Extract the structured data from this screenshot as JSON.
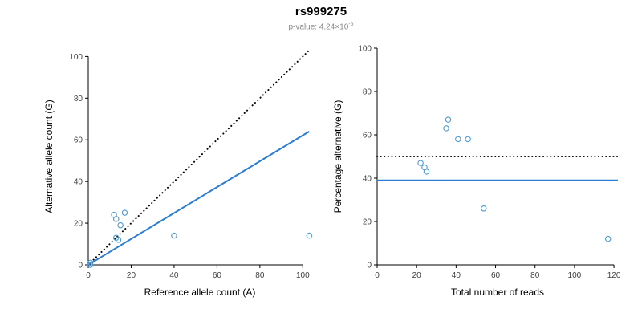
{
  "figure": {
    "title": "rs999275",
    "subtitle_base": "p-value: 4.24×10",
    "subtitle_exponent": "-5"
  },
  "chart_data": [
    {
      "type": "scatter",
      "name": "allele-count-scatter",
      "xlabel": "Reference allele count (A)",
      "ylabel": "Alternative allele count (G)",
      "xlim": [
        0,
        104
      ],
      "ylim": [
        0,
        104
      ],
      "xticks": [
        0,
        20,
        40,
        60,
        80,
        100
      ],
      "yticks": [
        0,
        20,
        40,
        60,
        80,
        100
      ],
      "grid": false,
      "point_color": "#4a9bd5",
      "points": [
        [
          1,
          0
        ],
        [
          1,
          1
        ],
        [
          12,
          24
        ],
        [
          13,
          22
        ],
        [
          13,
          13
        ],
        [
          14,
          12
        ],
        [
          15,
          19
        ],
        [
          17,
          25
        ],
        [
          40,
          14
        ],
        [
          103,
          14
        ]
      ],
      "lines": [
        {
          "name": "identity-line",
          "style": "dotted",
          "color": "#000000",
          "x1": 0,
          "y1": 0,
          "x2": 103,
          "y2": 103
        },
        {
          "name": "regression-line",
          "style": "solid",
          "color": "#2b7cd3",
          "x1": 0,
          "y1": 0,
          "x2": 103,
          "y2": 64
        }
      ]
    },
    {
      "type": "scatter",
      "name": "percentage-scatter",
      "xlabel": "Total number of reads",
      "ylabel": "Percentage alternative (G)",
      "xlim": [
        0,
        122
      ],
      "ylim": [
        0,
        100
      ],
      "xticks": [
        0,
        20,
        40,
        60,
        80,
        100,
        120
      ],
      "yticks": [
        0,
        20,
        40,
        60,
        80,
        100
      ],
      "grid": false,
      "point_color": "#4a9bd5",
      "points": [
        [
          22,
          47
        ],
        [
          24,
          45
        ],
        [
          25,
          43
        ],
        [
          35,
          63
        ],
        [
          36,
          67
        ],
        [
          41,
          58
        ],
        [
          46,
          58
        ],
        [
          54,
          26
        ],
        [
          117,
          12
        ]
      ],
      "lines": [
        {
          "name": "expected-50pct-line",
          "style": "dotted",
          "color": "#000000",
          "x1": 0,
          "y1": 50,
          "x2": 122,
          "y2": 50
        },
        {
          "name": "mean-percentage-line",
          "style": "solid",
          "color": "#2b7cd3",
          "x1": 0,
          "y1": 39,
          "x2": 122,
          "y2": 39
        }
      ]
    }
  ]
}
